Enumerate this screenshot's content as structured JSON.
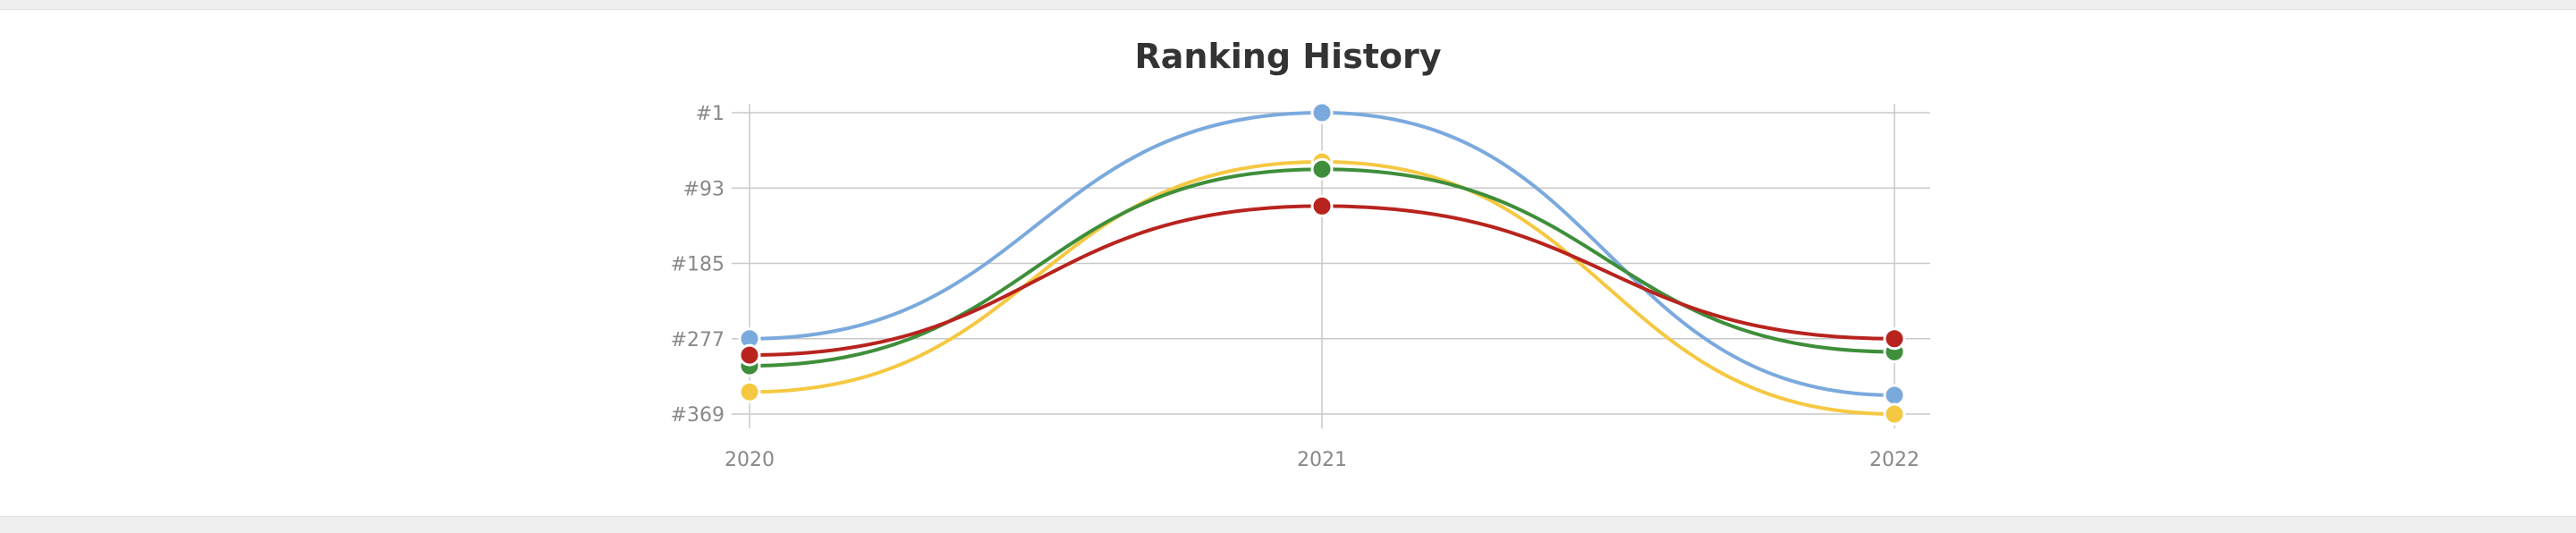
{
  "chart_data": {
    "type": "line",
    "title": "Ranking History",
    "xlabel": "",
    "ylabel": "",
    "x": [
      "2020",
      "2021",
      "2022"
    ],
    "y_ticks": [
      "#1",
      "#93",
      "#185",
      "#277",
      "#369"
    ],
    "ylim": [
      1,
      369
    ],
    "y_inverted": true,
    "grid": true,
    "legend": "none",
    "series": [
      {
        "color": "#7aa9dd",
        "values": [
          277,
          1,
          346
        ]
      },
      {
        "color": "#f5c842",
        "values": [
          342,
          61,
          369
        ]
      },
      {
        "color": "#3e8e3a",
        "values": [
          310,
          70,
          293
        ]
      },
      {
        "color": "#b8231e",
        "values": [
          297,
          115,
          277
        ]
      }
    ]
  }
}
